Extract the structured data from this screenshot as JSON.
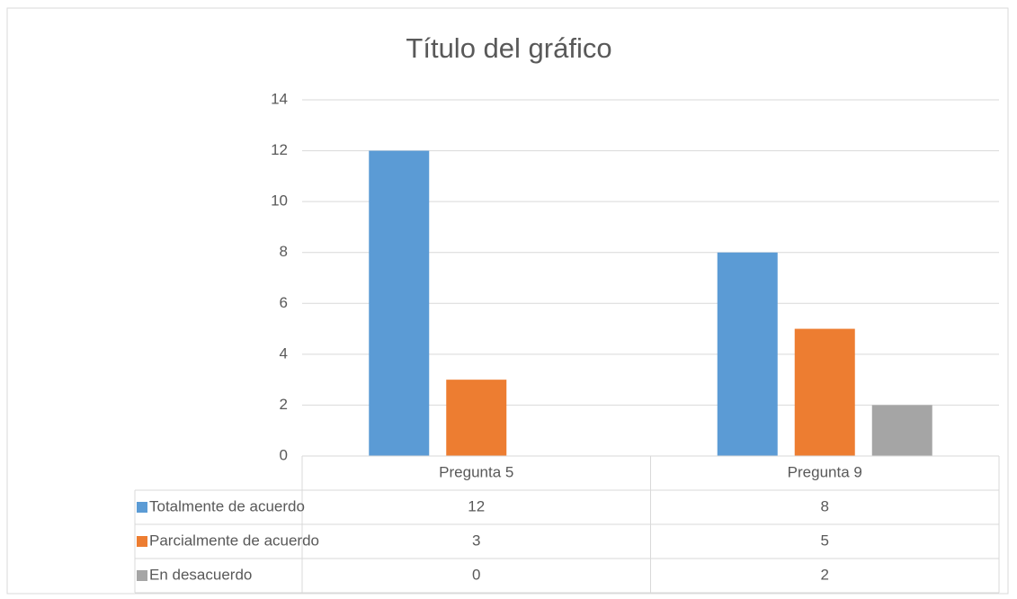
{
  "chart_data": {
    "type": "bar",
    "title": "Título del gráfico",
    "categories": [
      "Pregunta 5",
      "Pregunta 9"
    ],
    "series": [
      {
        "name": "Totalmente de acuerdo",
        "color": "#5b9bd5",
        "values": [
          12,
          8
        ]
      },
      {
        "name": "Parcialmente de acuerdo",
        "color": "#ed7d31",
        "values": [
          3,
          5
        ]
      },
      {
        "name": "En desacuerdo",
        "color": "#a5a5a5",
        "values": [
          0,
          2
        ]
      }
    ],
    "ylim": [
      0,
      14
    ],
    "yticks": [
      0,
      2,
      4,
      6,
      8,
      10,
      12,
      14
    ],
    "grid": true,
    "data_table": true
  }
}
